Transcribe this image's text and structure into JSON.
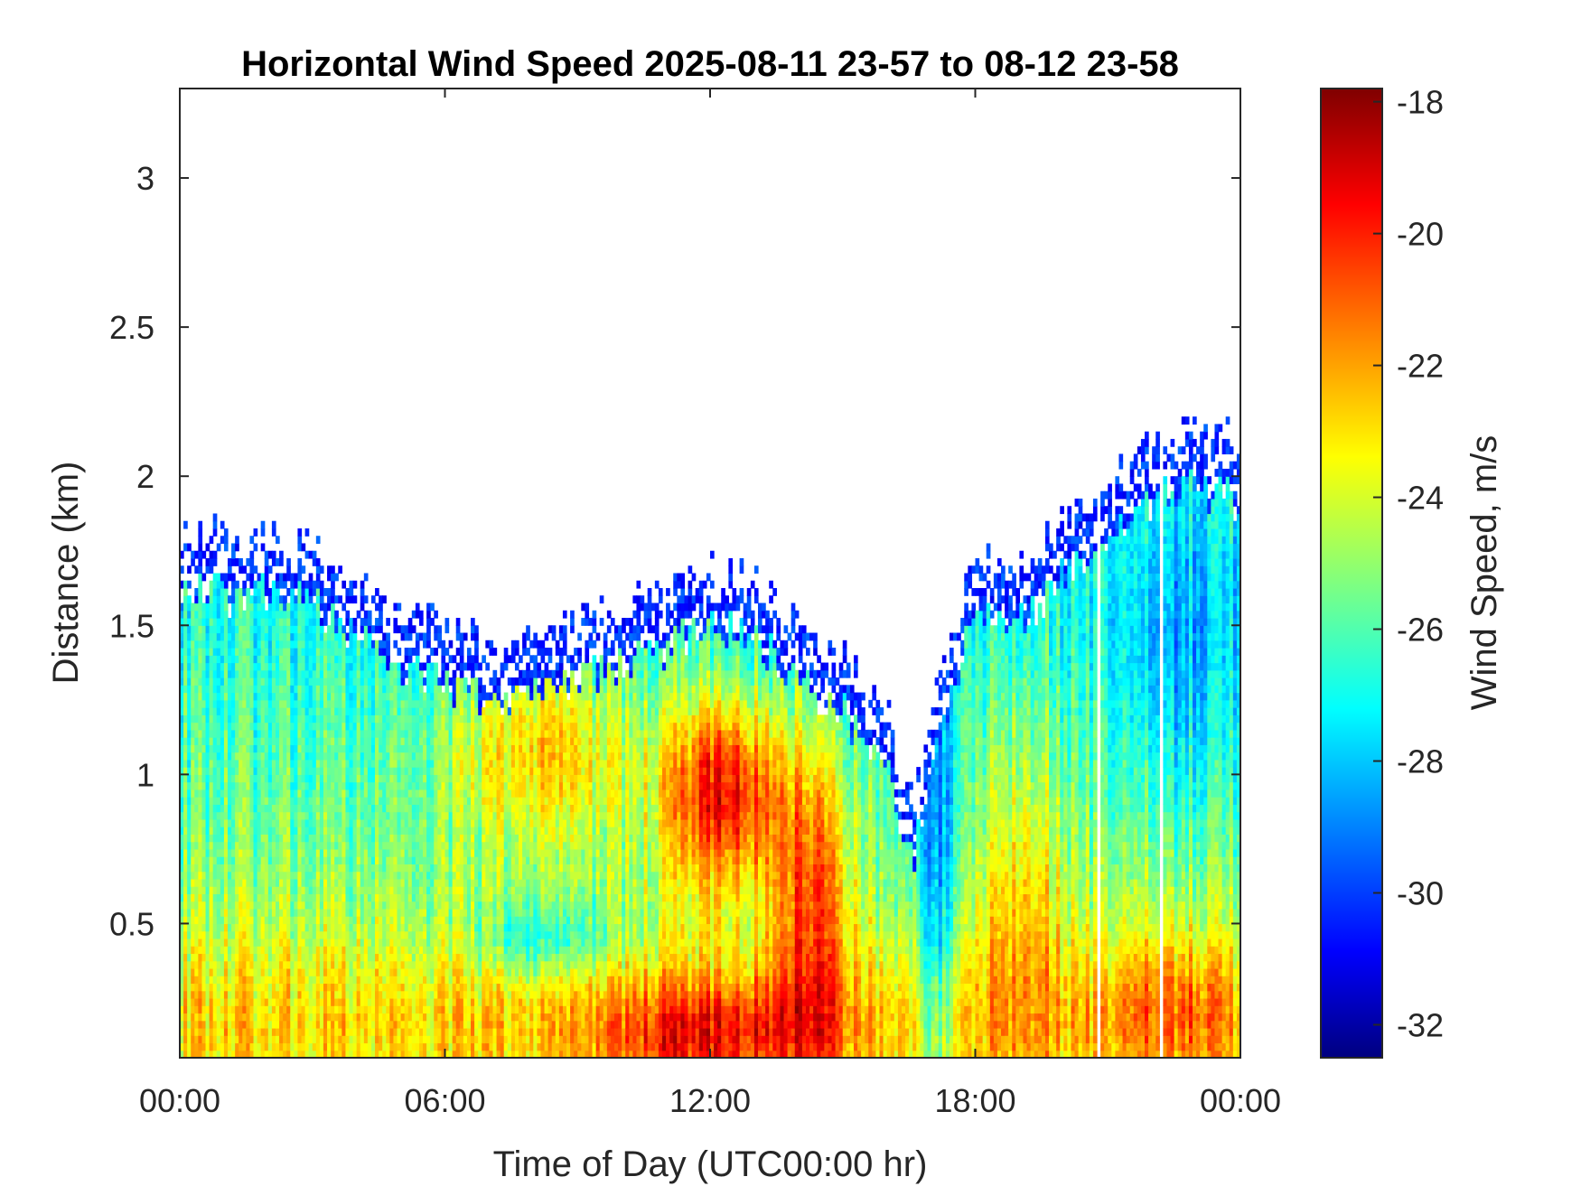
{
  "chart_data": {
    "type": "heatmap",
    "title": "Horizontal Wind Speed 2025-08-11 23-57 to 08-12 23-58",
    "xlabel": "Time of Day (UTC00:00 hr)",
    "ylabel": "Distance (km)",
    "colorbar_label": "Wind Speed, m/s",
    "colormap": "jet",
    "x_range_hours": [
      0,
      24
    ],
    "xlim_hours": [
      0,
      24
    ],
    "ylim": [
      0.05,
      3.3
    ],
    "clim": [
      -32.5,
      -17.8
    ],
    "x_ticks": [
      "00:00",
      "06:00",
      "12:00",
      "18:00",
      "00:00"
    ],
    "y_ticks": [
      "0.5",
      "1",
      "1.5",
      "2",
      "2.5",
      "3"
    ],
    "colorbar_ticks": [
      "-18",
      "-20",
      "-22",
      "-24",
      "-26",
      "-28",
      "-30",
      "-32"
    ],
    "grid": false,
    "data_gaps_hours": [
      20.8,
      22.2
    ],
    "top_height_km": [
      [
        0,
        1.8
      ],
      [
        1,
        1.78
      ],
      [
        2,
        1.8
      ],
      [
        3,
        1.75
      ],
      [
        4,
        1.65
      ],
      [
        5,
        1.55
      ],
      [
        6,
        1.48
      ],
      [
        7,
        1.43
      ],
      [
        8,
        1.45
      ],
      [
        9,
        1.5
      ],
      [
        10,
        1.55
      ],
      [
        11,
        1.6
      ],
      [
        11.5,
        1.65
      ],
      [
        12,
        1.7
      ],
      [
        13,
        1.65
      ],
      [
        14,
        1.5
      ],
      [
        15,
        1.4
      ],
      [
        16,
        1.2
      ],
      [
        16.6,
        0.9
      ],
      [
        17.2,
        1.3
      ],
      [
        18,
        1.75
      ],
      [
        19,
        1.7
      ],
      [
        20,
        1.85
      ],
      [
        21,
        1.95
      ],
      [
        22,
        2.1
      ],
      [
        23,
        2.15
      ],
      [
        24,
        2.1
      ]
    ],
    "approx_field": [
      {
        "x_hours": [
          0,
          6
        ],
        "y_km": [
          0.05,
          0.55
        ],
        "value": -23
      },
      {
        "x_hours": [
          0,
          6
        ],
        "y_km": [
          0.55,
          1.7
        ],
        "value": -25.5
      },
      {
        "x_hours": [
          6,
          10
        ],
        "y_km": [
          0.05,
          0.3
        ],
        "value": -21.5
      },
      {
        "x_hours": [
          6,
          10
        ],
        "y_km": [
          0.35,
          0.55
        ],
        "value": -25
      },
      {
        "x_hours": [
          6,
          10
        ],
        "y_km": [
          0.6,
          1.45
        ],
        "value": -22.5
      },
      {
        "x_hours": [
          11,
          14
        ],
        "y_km": [
          0.6,
          1.25
        ],
        "value": -19
      },
      {
        "x_hours": [
          10,
          15.5
        ],
        "y_km": [
          0.05,
          0.3
        ],
        "value": -20.5
      },
      {
        "x_hours": [
          16.5,
          18
        ],
        "y_km": [
          0.05,
          1.5
        ],
        "value": -26.5
      },
      {
        "x_hours": [
          18,
          21
        ],
        "y_km": [
          0.05,
          1.2
        ],
        "value": -22
      },
      {
        "x_hours": [
          21,
          24
        ],
        "y_km": [
          0.05,
          0.5
        ],
        "value": -22
      },
      {
        "x_hours": [
          21,
          24
        ],
        "y_km": [
          0.5,
          2.1
        ],
        "value": -27
      }
    ]
  }
}
